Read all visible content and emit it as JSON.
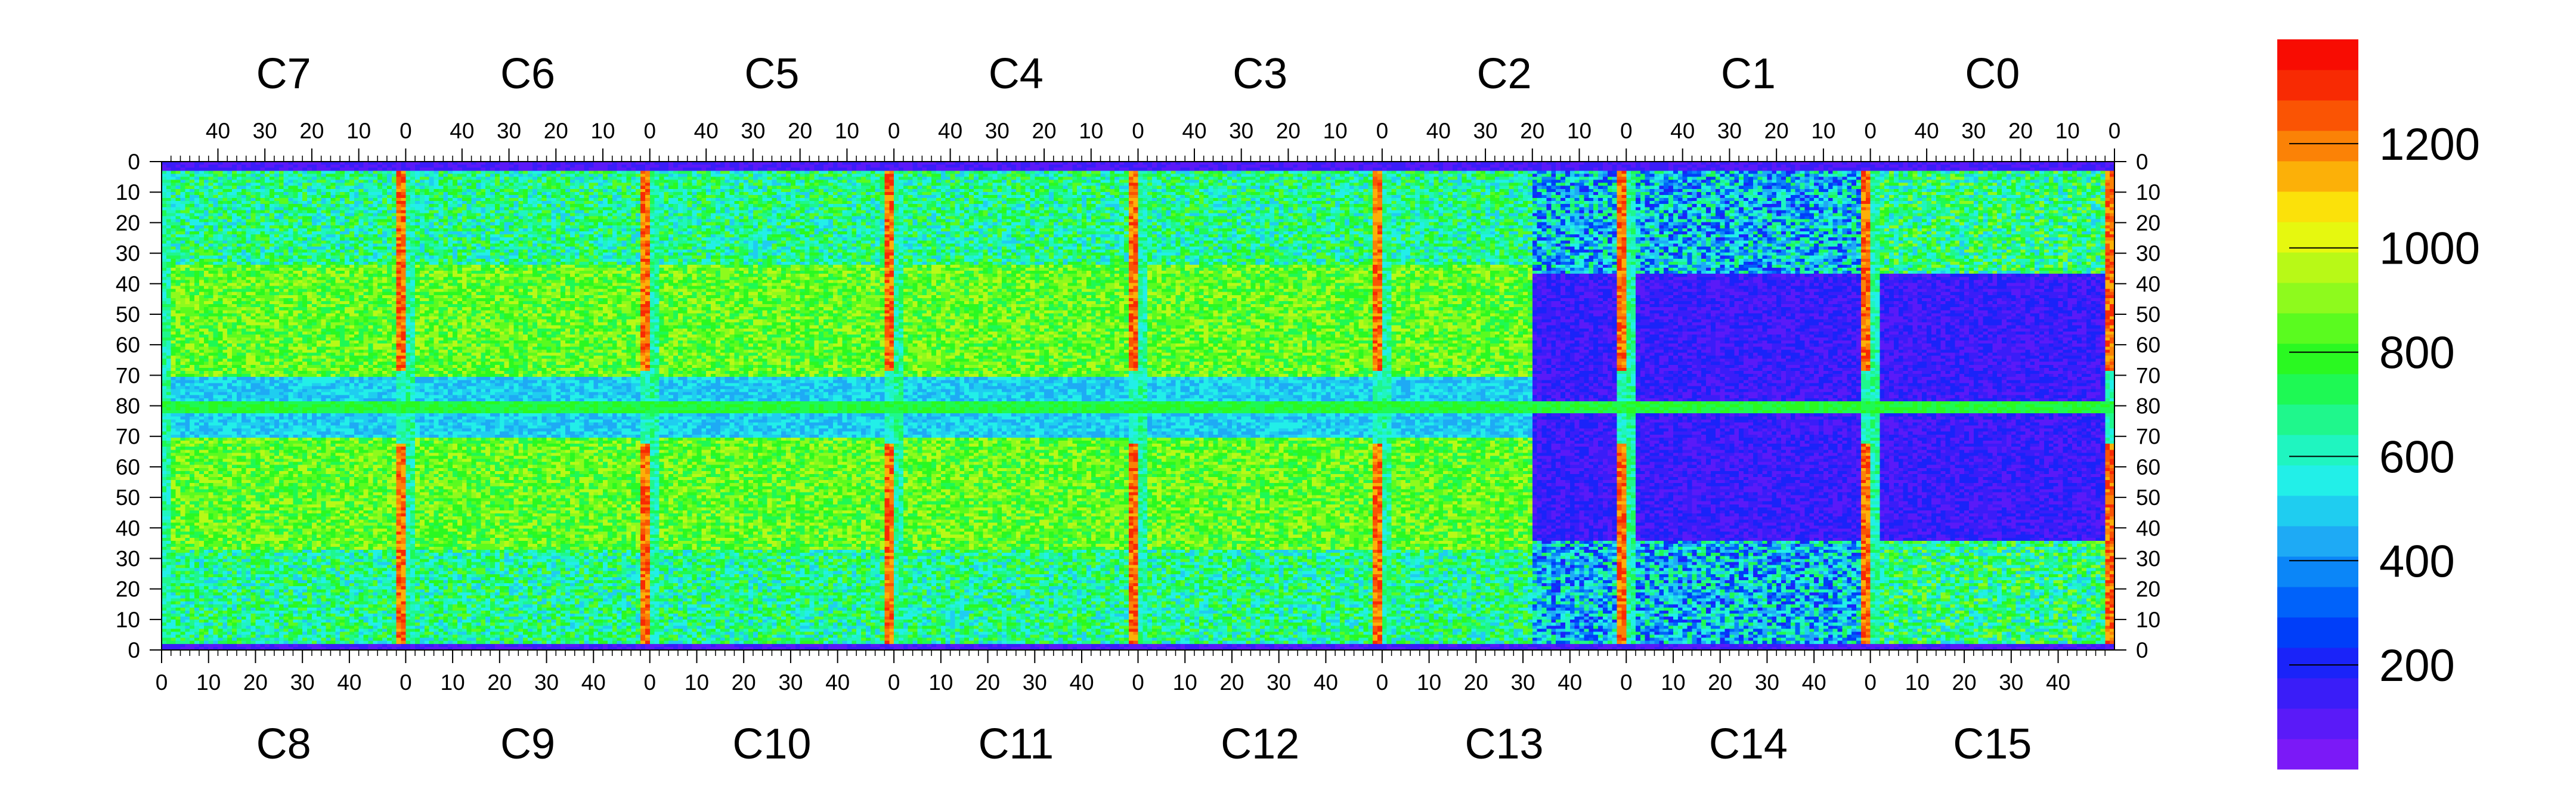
{
  "chart_data": {
    "type": "heatmap",
    "title": "",
    "xlabel": "",
    "ylabel": "",
    "top_chips": [
      "C7",
      "C6",
      "C5",
      "C4",
      "C3",
      "C2",
      "C1",
      "C0"
    ],
    "bottom_chips": [
      "C8",
      "C9",
      "C10",
      "C11",
      "C12",
      "C13",
      "C14",
      "C15"
    ],
    "top_x_ticks": [
      "40",
      "30",
      "20",
      "10",
      "0"
    ],
    "bottom_x_ticks": [
      "0",
      "10",
      "20",
      "30",
      "40"
    ],
    "y_ticks": [
      "0",
      "10",
      "20",
      "30",
      "40",
      "50",
      "60",
      "70",
      "80",
      "70",
      "60",
      "50",
      "40",
      "30",
      "20",
      "10",
      "0"
    ],
    "y_range": [
      0,
      80
    ],
    "columns_per_chip": 52,
    "rows_per_half": 80,
    "colorbar": {
      "min": 0,
      "max": 1400,
      "ticks": [
        "200",
        "400",
        "600",
        "800",
        "1000",
        "1200"
      ],
      "colors": [
        "#7b19f7",
        "#5a1af8",
        "#3a1df8",
        "#1a23f9",
        "#003ef9",
        "#0062fa",
        "#0b86f8",
        "#1eaaf5",
        "#1fcdf0",
        "#22efe8",
        "#1ff5c0",
        "#1ff78c",
        "#1ef954",
        "#2af921",
        "#5afb1f",
        "#8efa1d",
        "#b8f917",
        "#e6f80f",
        "#fbe10a",
        "#fcb008",
        "#fb8206",
        "#fa5404",
        "#f82a03",
        "#f80c02"
      ]
    }
  }
}
